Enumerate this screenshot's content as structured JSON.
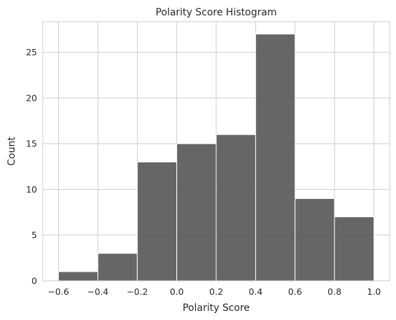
{
  "chart_data": {
    "type": "bar",
    "title": "Polarity Score Histogram",
    "xlabel": "Polarity Score",
    "ylabel": "Count",
    "xlim": [
      -0.68,
      1.08
    ],
    "ylim": [
      0,
      28.35
    ],
    "xticks": [
      -0.6,
      -0.4,
      -0.2,
      0.0,
      0.2,
      0.4,
      0.6,
      0.8,
      1.0
    ],
    "xtick_labels": [
      "−0.6",
      "−0.4",
      "−0.2",
      "0.0",
      "0.2",
      "0.4",
      "0.6",
      "0.8",
      "1.0"
    ],
    "yticks": [
      0,
      5,
      10,
      15,
      20,
      25
    ],
    "ytick_labels": [
      "0",
      "5",
      "10",
      "15",
      "20",
      "25"
    ],
    "grid": true,
    "bar_color": "#595959",
    "bins": [
      {
        "x0": -0.6,
        "x1": -0.4,
        "count": 1
      },
      {
        "x0": -0.4,
        "x1": -0.2,
        "count": 3
      },
      {
        "x0": -0.2,
        "x1": 0.0,
        "count": 13
      },
      {
        "x0": 0.0,
        "x1": 0.2,
        "count": 15
      },
      {
        "x0": 0.2,
        "x1": 0.4,
        "count": 16
      },
      {
        "x0": 0.4,
        "x1": 0.6,
        "count": 27
      },
      {
        "x0": 0.6,
        "x1": 0.8,
        "count": 9
      },
      {
        "x0": 0.8,
        "x1": 1.0,
        "count": 7
      }
    ]
  }
}
